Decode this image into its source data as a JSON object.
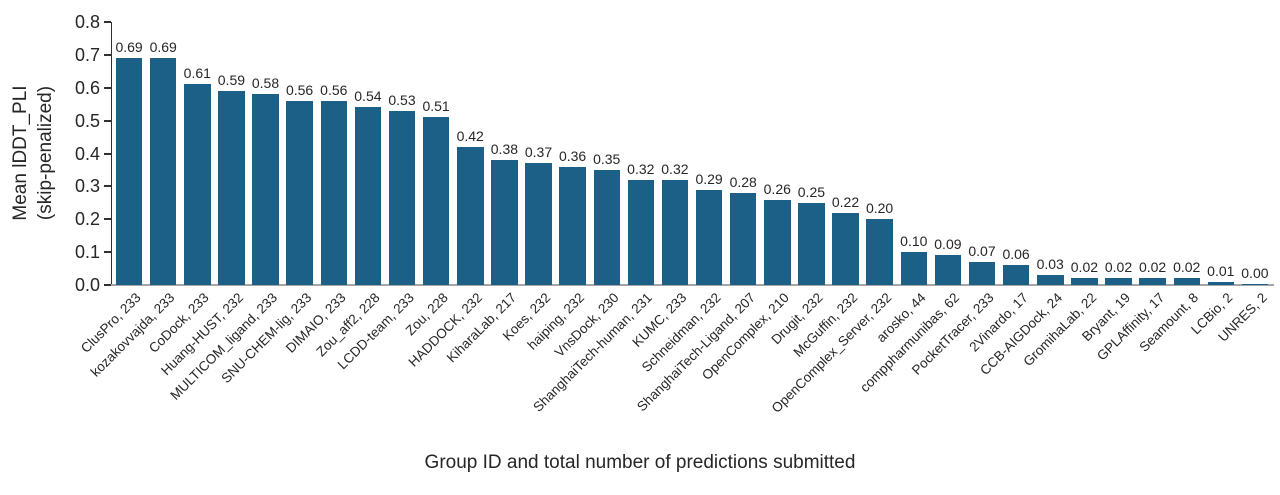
{
  "chart_data": {
    "type": "bar",
    "title": "",
    "xlabel": "Group ID and total number of predictions submitted",
    "ylabel": "Mean lDDT_PLI\n(skip-penalized)",
    "ylim": [
      0,
      0.8
    ],
    "ytick_labels": [
      "0.0",
      "0.1",
      "0.2",
      "0.3",
      "0.4",
      "0.5",
      "0.6",
      "0.7",
      "0.8"
    ],
    "grid": false,
    "legend": null,
    "value_label_format": "2-decimals",
    "bar_color": "#1d6087",
    "axis_color": "#303030",
    "baseline_color": "#a6a6a6",
    "text_color": "#262626",
    "categories": [
      "ClusPro, 233",
      "kozakovvajda, 233",
      "CoDock, 233",
      "Huang-HUST, 232",
      "MULTICOM_ligand, 233",
      "SNU-CHEM-lig, 233",
      "DIMAIO, 233",
      "Zou_aff2, 228",
      "LCDD-team, 233",
      "Zou, 228",
      "HADDOCK, 232",
      "KiharaLab, 217",
      "Koes, 232",
      "haiping, 232",
      "VnsDock, 230",
      "ShanghaiTech-human, 231",
      "KUMC, 233",
      "Schneidman, 232",
      "ShanghaiTech-Ligand, 207",
      "OpenComplex, 210",
      "Drugit, 232",
      "McGuffin, 232",
      "OpenComplex_Server, 232",
      "arosko, 44",
      "comppharmunibas, 62",
      "PocketTracer, 233",
      "2Vinardo, 17",
      "CCB-AIGDock, 24",
      "GromihaLab, 22",
      "Bryant, 19",
      "GPLAffinity, 17",
      "Seamount, 8",
      "LCBio, 2",
      "UNRES, 2"
    ],
    "values": [
      0.69,
      0.69,
      0.61,
      0.59,
      0.58,
      0.56,
      0.56,
      0.54,
      0.53,
      0.51,
      0.42,
      0.38,
      0.37,
      0.36,
      0.35,
      0.32,
      0.32,
      0.29,
      0.28,
      0.26,
      0.25,
      0.22,
      0.2,
      0.1,
      0.09,
      0.07,
      0.06,
      0.03,
      0.02,
      0.02,
      0.02,
      0.02,
      0.01,
      0.0
    ]
  }
}
